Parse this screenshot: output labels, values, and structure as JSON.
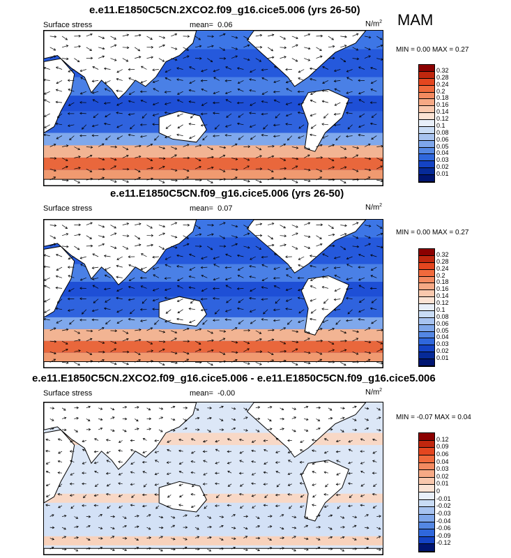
{
  "season": "MAM",
  "panels": [
    {
      "title": "e.e11.E1850C5CN.2XCO2.f09_g16.cice5.006 (yrs 26-50)",
      "left_label": "Surface stress",
      "mean_label": "mean=",
      "mean_value": "0.06",
      "units": "N/m",
      "units_sup": "2",
      "minmax": "MIN =   0.00 MAX =   0.27",
      "colorbar": {
        "labels": [
          "0.32",
          "0.28",
          "0.24",
          "0.2",
          "0.18",
          "0.16",
          "0.14",
          "0.12",
          "0.1",
          "0.08",
          "0.06",
          "0.05",
          "0.04",
          "0.03",
          "0.02",
          "0.01"
        ],
        "colors": [
          "#8b0000",
          "#c0270e",
          "#e4461f",
          "#f06a3c",
          "#f38a60",
          "#f6a985",
          "#f9c8ad",
          "#fbe3d4",
          "#e8eff9",
          "#c9dcf5",
          "#a7c3f0",
          "#7ea6ea",
          "#5487e3",
          "#2f67dc",
          "#1443c4",
          "#062a98",
          "#001571"
        ]
      }
    },
    {
      "title": "e.e11.E1850C5CN.f09_g16.cice5.006 (yrs 26-50)",
      "left_label": "Surface stress",
      "mean_label": "mean=",
      "mean_value": "0.07",
      "units": "N/m",
      "units_sup": "2",
      "minmax": "MIN =   0.00 MAX =   0.27",
      "colorbar": {
        "labels": [
          "0.32",
          "0.28",
          "0.24",
          "0.2",
          "0.18",
          "0.16",
          "0.14",
          "0.12",
          "0.1",
          "0.08",
          "0.06",
          "0.05",
          "0.04",
          "0.03",
          "0.02",
          "0.01"
        ],
        "colors": [
          "#8b0000",
          "#c0270e",
          "#e4461f",
          "#f06a3c",
          "#f38a60",
          "#f6a985",
          "#f9c8ad",
          "#fbe3d4",
          "#e8eff9",
          "#c9dcf5",
          "#a7c3f0",
          "#7ea6ea",
          "#5487e3",
          "#2f67dc",
          "#1443c4",
          "#062a98",
          "#001571"
        ]
      }
    },
    {
      "title": "e.e11.E1850C5CN.2XCO2.f09_g16.cice5.006 - e.e11.E1850C5CN.f09_g16.cice5.006",
      "left_label": "Surface stress",
      "mean_label": "mean=",
      "mean_value": "-0.00",
      "units": "N/m",
      "units_sup": "2",
      "minmax": "MIN =  -0.07 MAX =   0.04",
      "colorbar": {
        "labels": [
          "0.12",
          "0.09",
          "0.06",
          "0.04",
          "0.03",
          "0.02",
          "0.01",
          "0",
          "-0.01",
          "-0.02",
          "-0.03",
          "-0.04",
          "-0.06",
          "-0.09",
          "-0.12"
        ],
        "colors": [
          "#8b0000",
          "#c0270e",
          "#e4461f",
          "#f06a3c",
          "#f38a60",
          "#f6a985",
          "#f9c8ad",
          "#fbe3d4",
          "#e8eff9",
          "#c9dcf5",
          "#a7c3f0",
          "#7ea6ea",
          "#5487e3",
          "#2f67dc",
          "#1443c4",
          "#001571"
        ]
      }
    }
  ]
}
